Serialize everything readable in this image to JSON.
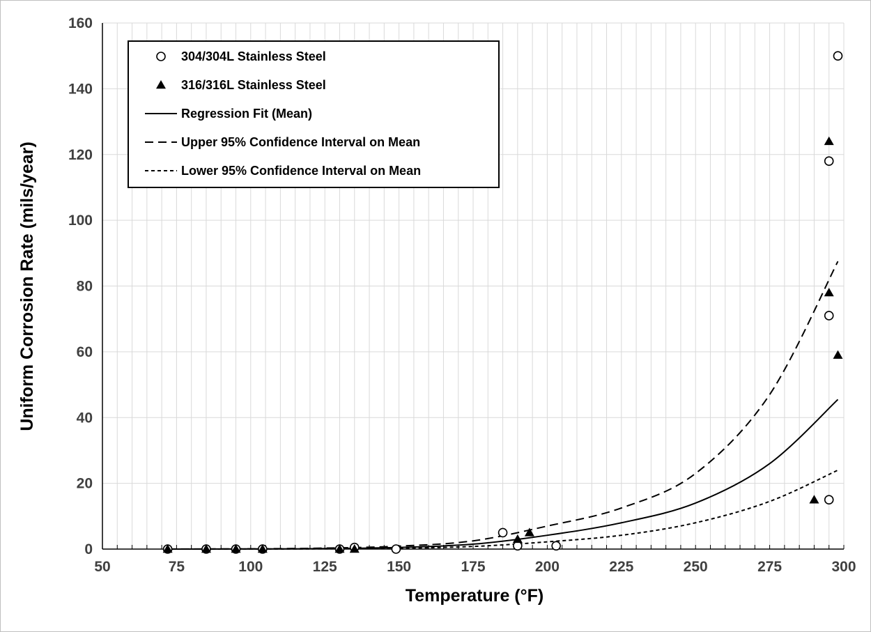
{
  "chart_data": {
    "type": "scatter",
    "xlabel": "Temperature (°F)",
    "ylabel": "Uniform Corrosion Rate (mils/year)",
    "xlim": [
      50,
      300
    ],
    "ylim": [
      0,
      160
    ],
    "x_ticks": [
      50,
      75,
      100,
      125,
      150,
      175,
      200,
      225,
      250,
      275,
      300
    ],
    "y_ticks": [
      0,
      20,
      40,
      60,
      80,
      100,
      120,
      140,
      160
    ],
    "grid": true,
    "legend_position": "top-left",
    "series": [
      {
        "name": "304/304L Stainless Steel",
        "kind": "scatter",
        "marker": "open-circle",
        "x": [
          72,
          85,
          95,
          104,
          130,
          135,
          149,
          185,
          190,
          203,
          295,
          295,
          295,
          298
        ],
        "y": [
          0,
          0,
          0,
          0,
          0,
          0.5,
          0,
          5,
          1,
          1,
          15,
          71,
          118,
          150
        ]
      },
      {
        "name": "316/316L Stainless Steel",
        "kind": "scatter",
        "marker": "filled-triangle",
        "x": [
          72,
          85,
          95,
          104,
          130,
          135,
          190,
          194,
          290,
          295,
          295,
          298
        ],
        "y": [
          0,
          0,
          0,
          0,
          0,
          0,
          3,
          5,
          15,
          78,
          124,
          59
        ]
      },
      {
        "name": "Regression Fit (Mean)",
        "kind": "line",
        "dash": "solid",
        "x": [
          72,
          100,
          125,
          150,
          175,
          200,
          225,
          250,
          275,
          298
        ],
        "y": [
          0.01,
          0.04,
          0.15,
          0.5,
          1.5,
          4.2,
          8.0,
          14.0,
          26.0,
          45.5
        ]
      },
      {
        "name": "Upper 95% Confidence Interval on Mean",
        "kind": "line",
        "dash": "long",
        "x": [
          72,
          100,
          125,
          150,
          175,
          200,
          225,
          250,
          275,
          298
        ],
        "y": [
          0.02,
          0.08,
          0.3,
          0.9,
          2.5,
          7.0,
          12.5,
          23.0,
          47.0,
          87.5
        ]
      },
      {
        "name": "Lower 95% Confidence Interval on Mean",
        "kind": "line",
        "dash": "short",
        "x": [
          72,
          100,
          125,
          150,
          175,
          200,
          225,
          250,
          275,
          298
        ],
        "y": [
          0.005,
          0.02,
          0.08,
          0.25,
          0.8,
          2.2,
          4.2,
          8.0,
          14.5,
          24.0
        ]
      }
    ],
    "colors": {
      "marker": "#000000",
      "grid": "#d9d9d9",
      "axis": "#000000",
      "tick_label": "#404040"
    }
  }
}
